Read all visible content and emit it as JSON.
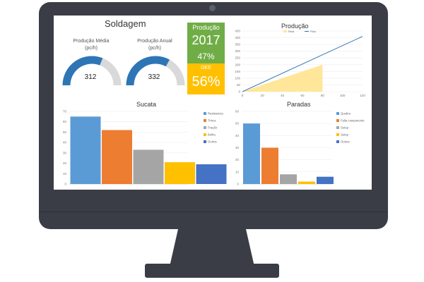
{
  "dashboard": {
    "title": "Soldagem",
    "gauge_avg": {
      "label_line1": "Produção Média",
      "label_line2": "(pc/h)",
      "value": "312",
      "fraction": 0.62
    },
    "gauge_annual": {
      "label_line1": "Produção Anual",
      "label_line2": "(pc/h)",
      "value": "332",
      "fraction": 0.66
    },
    "production_box": {
      "label": "Produção",
      "year": "2017",
      "percent": "47%"
    },
    "oee_box": {
      "label": "OEE",
      "value": "56%"
    }
  },
  "colors": {
    "green": "#70ad47",
    "yellow": "#ffc000",
    "blue": "#2e75b6",
    "orange": "#ed7d31",
    "gray": "#a5a5a5",
    "lightblue": "#5b9bd5",
    "bar_yellow": "#ffc000",
    "darkblue": "#4472c4"
  },
  "chart_data": [
    {
      "type": "line",
      "title": "Produção",
      "ylim": [
        0,
        450
      ],
      "yticks": [
        "450",
        "400",
        "350",
        "300",
        "250",
        "200",
        "150",
        "100",
        "50",
        "0"
      ],
      "xticks": [
        "0",
        "20",
        "40",
        "60",
        "80",
        "100",
        "120"
      ],
      "xlim": [
        0,
        120
      ],
      "series": [
        {
          "name": "Real",
          "kind": "area",
          "x": [
            0,
            80
          ],
          "y": [
            0,
            200
          ]
        },
        {
          "name": "Plan",
          "kind": "line",
          "x": [
            0,
            120
          ],
          "y": [
            0,
            410
          ]
        }
      ]
    },
    {
      "type": "bar",
      "title": "Sucata",
      "ylim": [
        0,
        70
      ],
      "yticks": [
        "70",
        "60",
        "50",
        "40",
        "30",
        "20",
        "10",
        "0"
      ],
      "series": [
        {
          "name": "Resistencia",
          "value": 65
        },
        {
          "name": "Trinca",
          "value": 52
        },
        {
          "name": "Fração",
          "value": 33
        },
        {
          "name": "Bolha",
          "value": 21
        },
        {
          "name": "Outros",
          "value": 19
        }
      ]
    },
    {
      "type": "bar",
      "title": "Paradas",
      "ylim": [
        0,
        60
      ],
      "yticks": [
        "60",
        "50",
        "40",
        "30",
        "20",
        "10",
        "0"
      ],
      "series": [
        {
          "name": "Quebra",
          "value": 50
        },
        {
          "name": "Falta componente",
          "value": 30
        },
        {
          "name": "Setup",
          "value": 8
        },
        {
          "name": "Setup",
          "value": 2
        },
        {
          "name": "Outros",
          "value": 6
        }
      ]
    }
  ]
}
